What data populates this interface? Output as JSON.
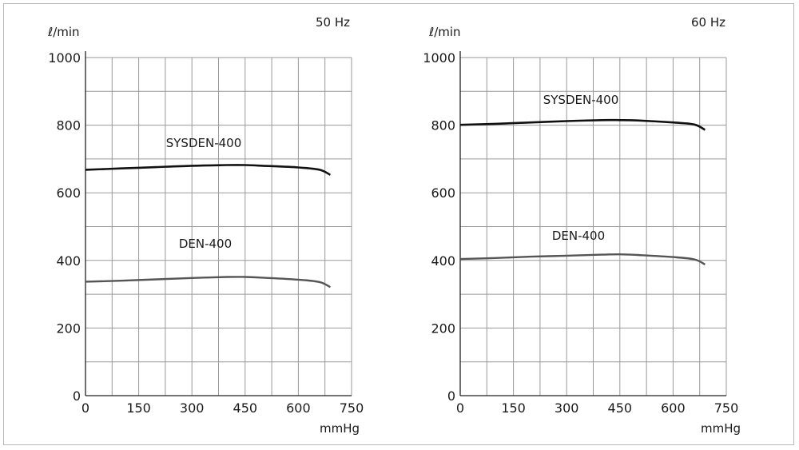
{
  "chart_data": [
    {
      "type": "line",
      "title": "50 Hz",
      "ylabel": "ℓ/min",
      "xlabel": "mmHg",
      "xlim": [
        0,
        750
      ],
      "ylim": [
        0,
        1000
      ],
      "x_ticks": [
        0,
        150,
        300,
        450,
        600,
        750
      ],
      "y_ticks": [
        0,
        200,
        400,
        600,
        800,
        1000
      ],
      "grid": true,
      "series": [
        {
          "name": "SYSDEN-400",
          "color": "#111111",
          "points": [
            [
              0,
              668
            ],
            [
              100,
              672
            ],
            [
              200,
              676
            ],
            [
              300,
              680
            ],
            [
              400,
              682
            ],
            [
              450,
              682
            ],
            [
              500,
              680
            ],
            [
              600,
              675
            ],
            [
              660,
              668
            ],
            [
              690,
              653
            ]
          ]
        },
        {
          "name": "DEN-400",
          "color": "#555555",
          "points": [
            [
              0,
              337
            ],
            [
              100,
              340
            ],
            [
              200,
              344
            ],
            [
              300,
              348
            ],
            [
              400,
              351
            ],
            [
              450,
              351
            ],
            [
              500,
              349
            ],
            [
              600,
              343
            ],
            [
              660,
              336
            ],
            [
              690,
              321
            ]
          ]
        }
      ]
    },
    {
      "type": "line",
      "title": "60 Hz",
      "ylabel": "ℓ/min",
      "xlabel": "mmHg",
      "xlim": [
        0,
        750
      ],
      "ylim": [
        0,
        1000
      ],
      "x_ticks": [
        0,
        150,
        300,
        450,
        600,
        750
      ],
      "y_ticks": [
        0,
        200,
        400,
        600,
        800,
        1000
      ],
      "grid": true,
      "series": [
        {
          "name": "SYSDEN-400",
          "color": "#111111",
          "points": [
            [
              0,
              801
            ],
            [
              100,
              804
            ],
            [
              200,
              808
            ],
            [
              300,
              812
            ],
            [
              400,
              815
            ],
            [
              450,
              815
            ],
            [
              500,
              814
            ],
            [
              600,
              808
            ],
            [
              660,
              802
            ],
            [
              690,
              786
            ]
          ]
        },
        {
          "name": "DEN-400",
          "color": "#555555",
          "points": [
            [
              0,
              404
            ],
            [
              100,
              407
            ],
            [
              200,
              411
            ],
            [
              300,
              414
            ],
            [
              400,
              417
            ],
            [
              450,
              418
            ],
            [
              500,
              416
            ],
            [
              600,
              410
            ],
            [
              660,
              403
            ],
            [
              690,
              388
            ]
          ]
        }
      ]
    }
  ]
}
